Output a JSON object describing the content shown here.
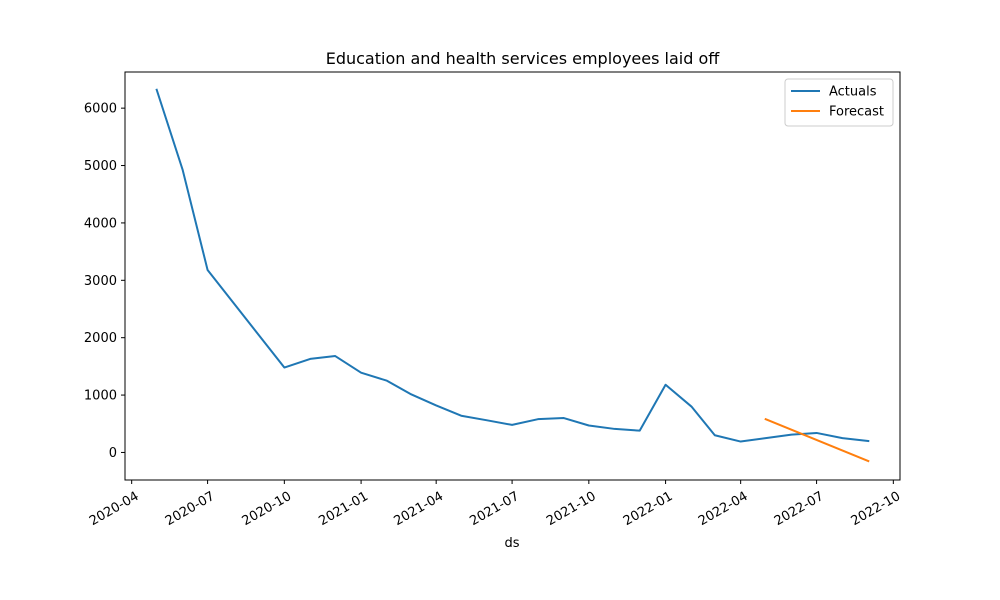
{
  "chart_data": {
    "type": "line",
    "title": "Education and health services employees laid off",
    "xlabel": "ds",
    "ylabel": "",
    "xlim": [
      "2020-03-24",
      "2022-10-09"
    ],
    "ylim": [
      -480,
      6630
    ],
    "x_ticks": [
      "2020-04",
      "2020-07",
      "2020-10",
      "2021-01",
      "2021-04",
      "2021-07",
      "2021-10",
      "2022-01",
      "2022-04",
      "2022-07",
      "2022-10"
    ],
    "y_ticks": [
      0,
      1000,
      2000,
      3000,
      4000,
      5000,
      6000
    ],
    "legend": {
      "location": "upper right"
    },
    "grid": false,
    "series": [
      {
        "name": "Actuals",
        "color": "#1f77b4",
        "x": [
          "2020-05-01",
          "2020-06-01",
          "2020-07-01",
          "2020-10-01",
          "2020-11-01",
          "2020-12-01",
          "2021-01-01",
          "2021-02-01",
          "2021-03-01",
          "2021-04-01",
          "2021-05-01",
          "2021-06-01",
          "2021-07-01",
          "2021-08-01",
          "2021-09-01",
          "2021-10-01",
          "2021-11-01",
          "2021-12-01",
          "2022-01-01",
          "2022-02-01",
          "2022-03-01",
          "2022-04-01",
          "2022-05-01",
          "2022-06-01",
          "2022-07-01",
          "2022-08-01",
          "2022-09-01"
        ],
        "y": [
          6320,
          4930,
          3180,
          1480,
          1630,
          1680,
          1390,
          1250,
          1020,
          820,
          640,
          560,
          480,
          580,
          600,
          470,
          410,
          380,
          1180,
          800,
          300,
          190,
          250,
          310,
          340,
          250,
          200
        ]
      },
      {
        "name": "Forecast",
        "color": "#ff7f0e",
        "x": [
          "2022-05-01",
          "2022-09-01"
        ],
        "y": [
          580,
          -150
        ]
      }
    ]
  }
}
